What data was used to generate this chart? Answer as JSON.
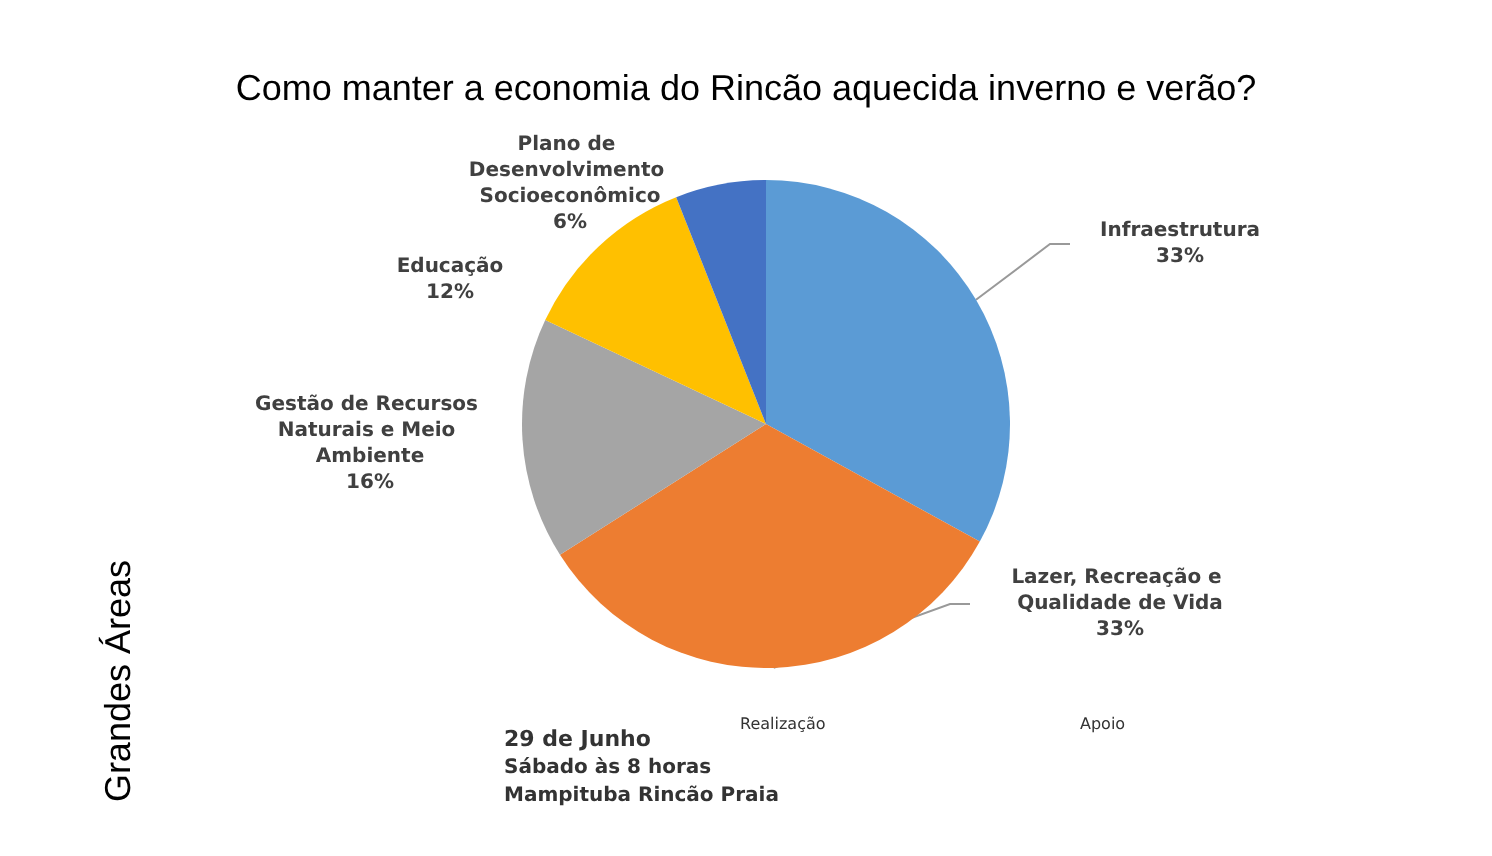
{
  "chart_data": {
    "type": "pie",
    "title": "Como manter a economia do Rincão aquecida inverno e verão?",
    "ylabel": "Grandes Áreas",
    "categories": [
      "Infraestrutura",
      "Lazer, Recreação e Qualidade de Vida",
      "Gestão de Recursos Naturais e Meio Ambiente",
      "Educação",
      "Plano de Desenvolvimento Socioeconômico"
    ],
    "values": [
      33,
      33,
      16,
      12,
      6
    ],
    "value_labels": [
      "33%",
      "33%",
      "16%",
      "12%",
      "6%"
    ],
    "colors": [
      "#5b9bd5",
      "#ed7d31",
      "#a5a5a5",
      "#ffc000",
      "#4472c4"
    ],
    "legend": false,
    "annotations": [
      "29 de Junho",
      "Sábado às 8 horas",
      "Mampituba Rincão Praia",
      "Realização",
      "Apoio"
    ]
  }
}
